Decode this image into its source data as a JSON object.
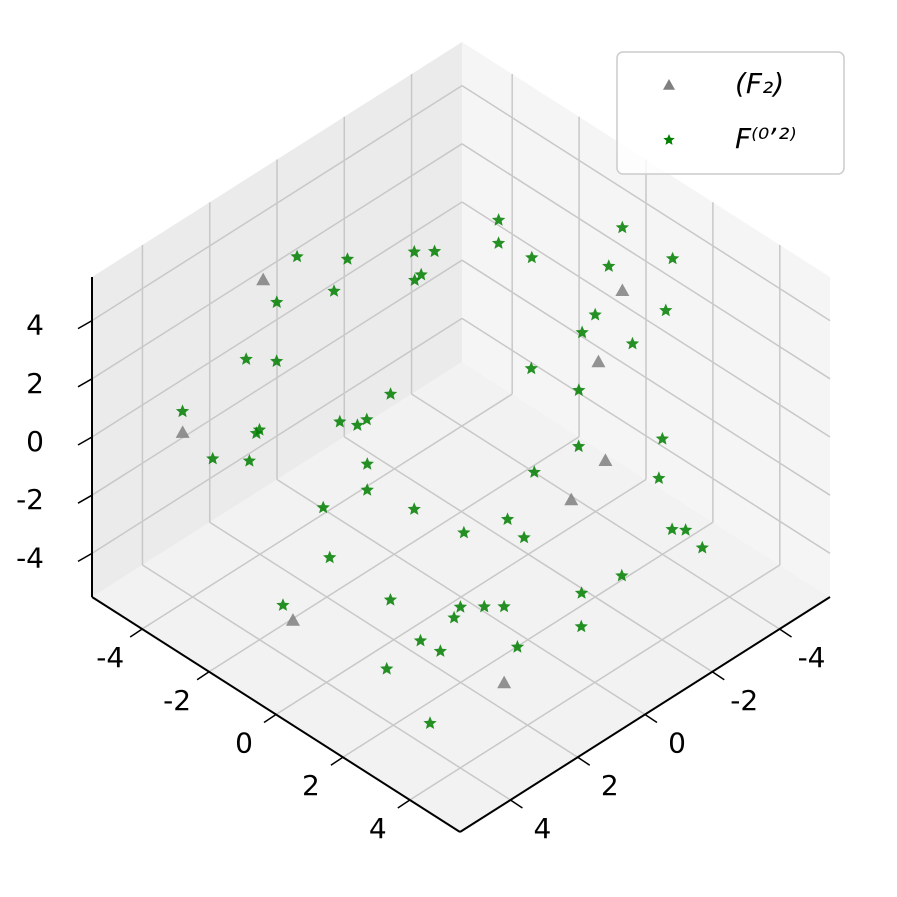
{
  "chart_data": {
    "type": "scatter3d",
    "xlim": [
      -5.5,
      5.5
    ],
    "ylim": [
      -5.5,
      5.5
    ],
    "zlim": [
      -5.5,
      5.5
    ],
    "xticks": [
      -4,
      -2,
      0,
      2,
      4
    ],
    "yticks": [
      -4,
      -2,
      0,
      2,
      4
    ],
    "zticks": [
      -4,
      -2,
      0,
      2,
      4
    ],
    "grid": true,
    "legend": "upper right",
    "series": [
      {
        "name": "(F₂)",
        "color": "#808080",
        "marker": "triangle",
        "x": [
          -3.5,
          1.2,
          4.0,
          -0.8,
          2.6,
          -4.6,
          0.4,
          3.2
        ],
        "y": [
          2.4,
          -3.1,
          0.7,
          4.2,
          -1.5,
          3.7,
          -4.4,
          1.9
        ],
        "z": [
          4.6,
          -2.2,
          1.3,
          -3.8,
          3.4,
          -0.5,
          2.1,
          -4.7
        ]
      },
      {
        "name": "F⁽⁰ʼ²⁾",
        "color": "#007f00",
        "marker": "star",
        "x": [
          -4.2,
          3.1,
          0.5,
          -1.8,
          2.7,
          -3.3,
          4.4,
          1.2,
          -0.6,
          -2.9,
          3.8,
          -4.7,
          0.9,
          2.2,
          -1.1,
          4.9,
          -3.6,
          1.7,
          -2.4,
          0.1,
          3.4,
          -4.0,
          2.5,
          -0.3,
          1.9,
          -3.0,
          4.1,
          -1.5,
          0.7,
          -2.2,
          3.6,
          -4.5,
          1.4,
          -0.9,
          2.9,
          -3.8,
          4.6,
          0.3,
          -1.3,
          2.0,
          -4.9,
          3.3,
          -0.1,
          1.0,
          -2.7,
          4.2,
          -3.1,
          0.6,
          -1.9,
          2.4,
          -4.3,
          3.9,
          -0.5,
          1.6,
          -2.5,
          4.7,
          -3.5,
          0.2,
          -1.6,
          2.8
        ],
        "y": [
          1.3,
          -2.8,
          4.1,
          -0.4,
          2.6,
          -4.4,
          0.8,
          -3.2,
          3.5,
          -1.7,
          4.7,
          -0.9,
          2.1,
          -3.9,
          1.0,
          -2.3,
          3.8,
          -4.6,
          0.4,
          2.9,
          -1.4,
          4.3,
          -3.5,
          1.8,
          -0.2,
          3.1,
          -2.6,
          4.8,
          -4.1,
          0.6,
          2.3,
          -1.1,
          3.6,
          -3.0,
          1.5,
          -0.7,
          2.7,
          -4.8,
          4.0,
          -2.0,
          0.0,
          3.3,
          -3.7,
          1.2,
          -1.9,
          2.5,
          -4.2,
          4.5,
          -0.5,
          3.0,
          -2.9,
          1.7,
          -4.0,
          0.9,
          3.9,
          -1.6,
          2.0,
          -3.3,
          4.4,
          -0.8
        ],
        "z": [
          2.5,
          -1.2,
          3.9,
          -4.1,
          0.6,
          1.8,
          -2.7,
          4.4,
          -0.3,
          2.2,
          -3.6,
          0.9,
          -4.8,
          3.1,
          1.4,
          -1.9,
          -0.6,
          4.0,
          -2.4,
          2.8,
          -3.3,
          1.1,
          -0.8,
          -4.5,
          3.6,
          0.2,
          -2.1,
          1.6,
          4.7,
          -3.0,
          -1.5,
          2.0,
          -4.3,
          3.3,
          0.4,
          -2.9,
          1.9,
          -0.1,
          -3.8,
          4.2,
          2.6,
          -1.0,
          0.8,
          -4.6,
          3.0,
          -2.3,
          1.3,
          -0.4,
          4.6,
          -3.4,
          0.1,
          2.9,
          -1.7,
          -4.0,
          3.7,
          -0.9,
          1.5,
          -2.6,
          2.3,
          -3.9
        ]
      }
    ]
  }
}
